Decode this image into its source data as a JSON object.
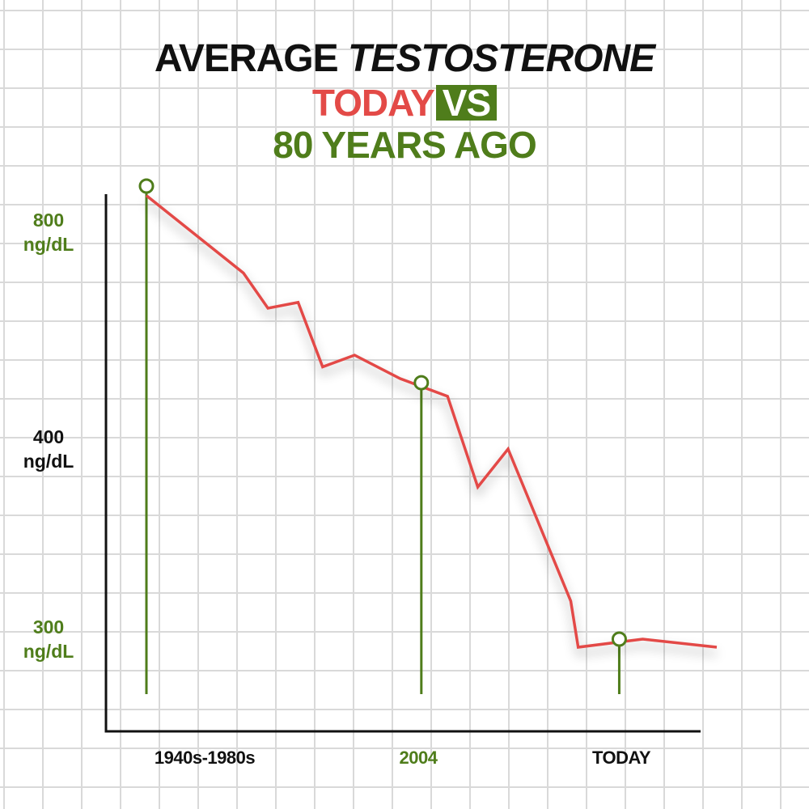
{
  "title": {
    "line1_a": "AVERAGE",
    "line1_b": "TESTOSTERONE",
    "line2_today": "TODAY",
    "line2_vs": "VS",
    "line3": "80 YEARS AGO"
  },
  "colors": {
    "line": "#e34a47",
    "marker": "#4f7d1b",
    "axis": "#111111",
    "green_text": "#4f7d1b",
    "black_text": "#111111"
  },
  "chart_data": {
    "type": "line",
    "title": "AVERAGE TESTOSTERONE TODAY VS 80 YEARS AGO",
    "y_ticks": [
      {
        "line1": "800",
        "line2": "ng/dL",
        "color": "green"
      },
      {
        "line1": "400",
        "line2": "ng/dL",
        "color": "black"
      },
      {
        "line1": "300",
        "line2": "ng/dL",
        "color": "green"
      }
    ],
    "x_ticks": [
      {
        "label": "1940s-1980s",
        "color": "black"
      },
      {
        "label": "2004",
        "color": "green"
      },
      {
        "label": "TODAY",
        "color": "black"
      }
    ],
    "line_points": [
      {
        "x": 0.0,
        "y": 820
      },
      {
        "x": 0.17,
        "y": 700
      },
      {
        "x": 0.213,
        "y": 640
      },
      {
        "x": 0.266,
        "y": 650
      },
      {
        "x": 0.309,
        "y": 540
      },
      {
        "x": 0.365,
        "y": 560
      },
      {
        "x": 0.445,
        "y": 520
      },
      {
        "x": 0.528,
        "y": 490
      },
      {
        "x": 0.581,
        "y": 380
      },
      {
        "x": 0.634,
        "y": 400
      },
      {
        "x": 0.744,
        "y": 320
      },
      {
        "x": 0.757,
        "y": 290
      },
      {
        "x": 0.87,
        "y": 300
      },
      {
        "x": 1.0,
        "y": 290
      }
    ],
    "markers": [
      {
        "x": 0.0,
        "y": 830
      },
      {
        "x": 0.482,
        "y": 513
      },
      {
        "x": 0.829,
        "y": 300
      }
    ],
    "grid": true,
    "legend": "none"
  }
}
